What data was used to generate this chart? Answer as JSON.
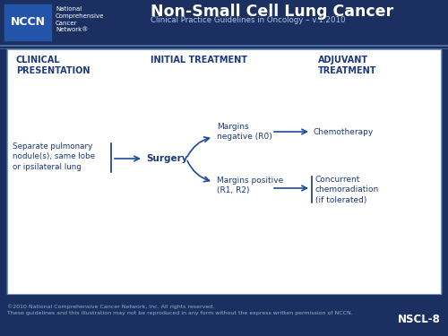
{
  "bg_dark": "#1b3060",
  "bg_light": "#ffffff",
  "text_dark_blue": "#1a3a7a",
  "text_white": "#ffffff",
  "text_light_blue": "#aec6e8",
  "arrow_color": "#1a4a9a",
  "border_color": "#7799bb",
  "nccn_box_color": "#2255aa",
  "title_main": "Non-Small Cell Lung Cancer",
  "title_sub": "Clinical Practice Guidelines in Oncology – v.1.2010",
  "col1_header": "CLINICAL\nPRESENTATION",
  "col2_header": "INITIAL TREATMENT",
  "col3_header": "ADJUVANT\nTREATMENT",
  "node1_text": "Separate pulmonary\nnodule(s), same lobe\nor ipsilateral lung",
  "node2_text": "Surgery",
  "node3_text": "Margins\nnegative (R0)",
  "node4_text": "Chemotherapy",
  "node5_text": "Margins positive\n(R1, R2)",
  "node6_text": "Concurrent\nchemoradiation\n(if tolerated)",
  "nccn_label": "NCCN",
  "nccn_side": "National\nComprehensive\nCancer\nNetwork®",
  "footer_text": "©2010 National Comprehensive Cancer Network, Inc. All rights reserved.\nThese guidelines and this illustration may not be reproduced in any form without the express written permission of NCCN.",
  "footer_tag": "NSCL-8",
  "separator_color": "#5577aa"
}
